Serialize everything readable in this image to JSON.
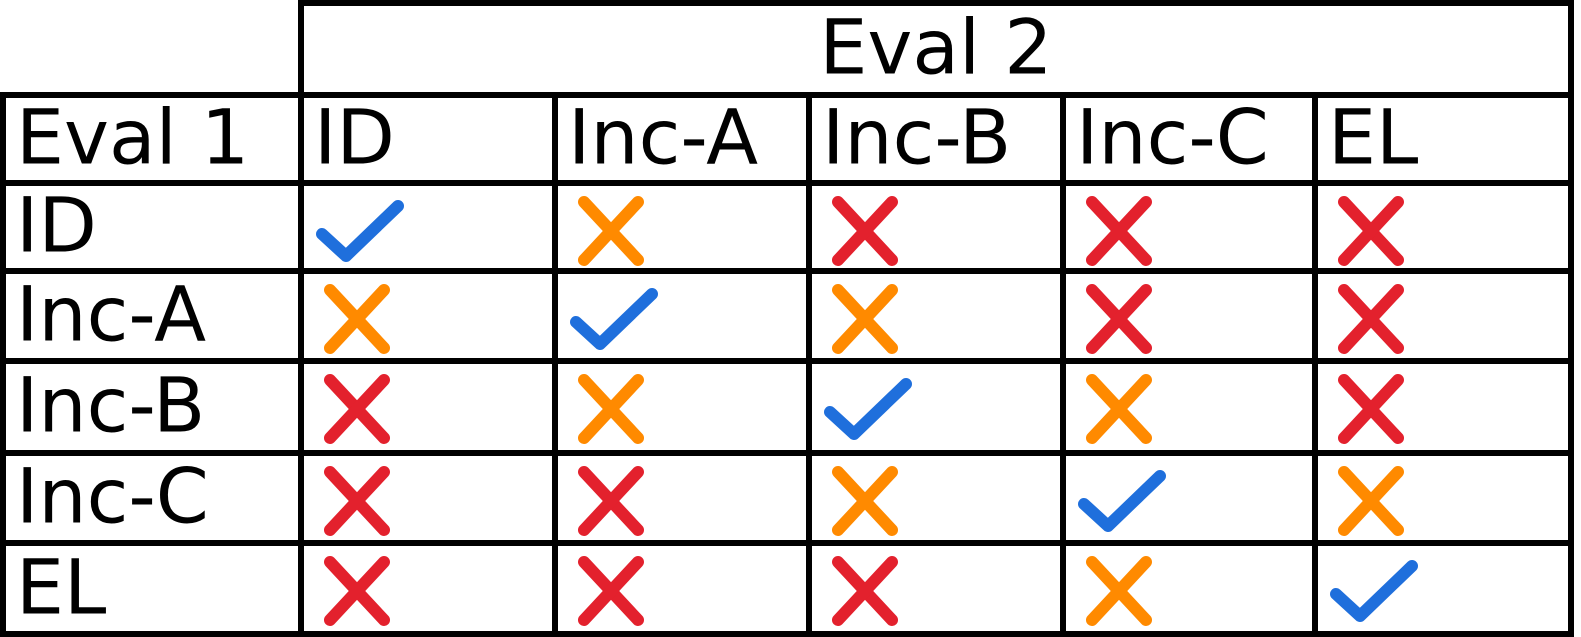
{
  "table": {
    "col_header": "Eval 2",
    "row_header": "Eval 1",
    "columns": [
      "ID",
      "Inc-A",
      "Inc-B",
      "Inc-C",
      "EL"
    ],
    "rows": [
      {
        "label": "ID",
        "cells": [
          "check",
          "cross-orange",
          "cross-red",
          "cross-red",
          "cross-red"
        ]
      },
      {
        "label": "Inc-A",
        "cells": [
          "cross-orange",
          "check",
          "cross-orange",
          "cross-red",
          "cross-red"
        ]
      },
      {
        "label": "Inc-B",
        "cells": [
          "cross-red",
          "cross-orange",
          "check",
          "cross-orange",
          "cross-red"
        ]
      },
      {
        "label": "Inc-C",
        "cells": [
          "cross-red",
          "cross-red",
          "cross-orange",
          "check",
          "cross-orange"
        ]
      },
      {
        "label": "EL",
        "cells": [
          "cross-red",
          "cross-red",
          "cross-red",
          "cross-orange",
          "check"
        ]
      }
    ]
  },
  "colors": {
    "check": "#1f6fdc",
    "cross-orange": "#ff8a00",
    "cross-red": "#e3212d",
    "border": "#000000"
  },
  "icons": {
    "check": "check-icon",
    "cross-orange": "cross-icon",
    "cross-red": "cross-icon"
  }
}
